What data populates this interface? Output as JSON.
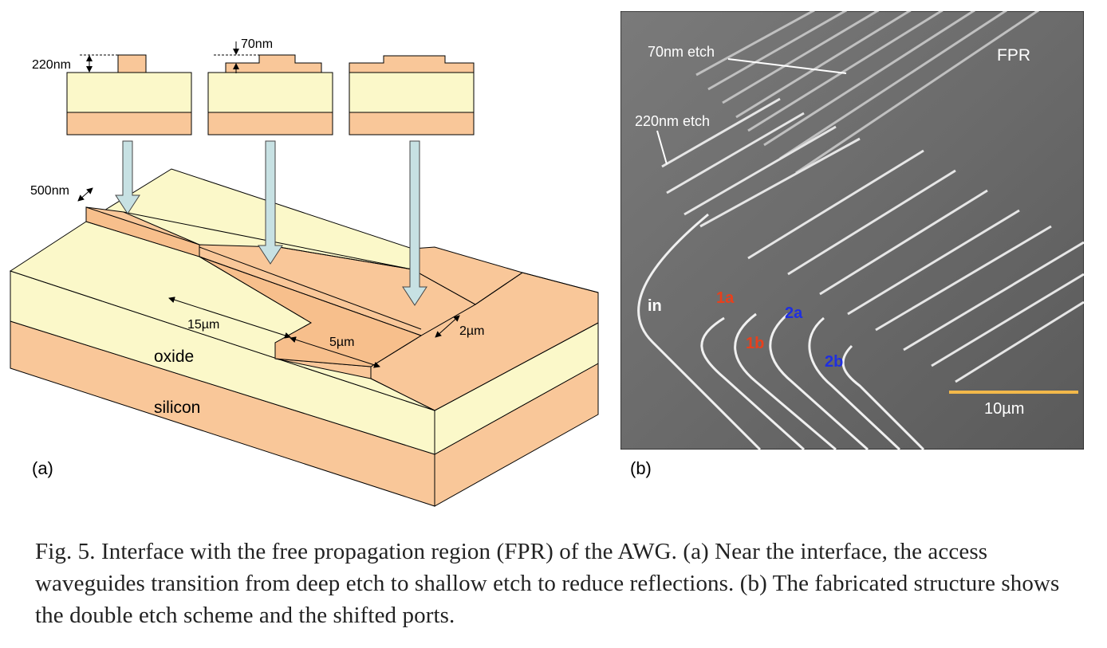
{
  "panel_a": {
    "label": "(a)",
    "dims": {
      "etch_deep": "220nm",
      "etch_shallow": "70nm",
      "width_500": "500nm",
      "len_15": "15µm",
      "len_5": "5µm",
      "width_2": "2µm"
    },
    "layers": {
      "oxide": "oxide",
      "silicon": "silicon"
    },
    "colors": {
      "oxide": "#fbf8c9",
      "silicon": "#f9c799",
      "arrow": "#c7e1e3"
    }
  },
  "panel_b": {
    "label": "(b)",
    "texts": {
      "etch70": "70nm etch",
      "etch220": "220nm etch",
      "fpr": "FPR",
      "port_in": "in",
      "port_1a": "1a",
      "port_1b": "1b",
      "port_2a": "2a",
      "port_2b": "2b",
      "scale": "10µm"
    },
    "colors": {
      "port_red": "#e8401c",
      "port_blue": "#1f2fe0",
      "scale_bar": "#f2b84a",
      "background": "#6d6d6d"
    }
  },
  "caption": "Fig. 5. Interface with the free propagation region (FPR) of the AWG. (a) Near the interface, the access waveguides transition from deep etch to shallow etch to reduce reflections. (b) The fabricated structure shows the double etch scheme and the shifted ports."
}
